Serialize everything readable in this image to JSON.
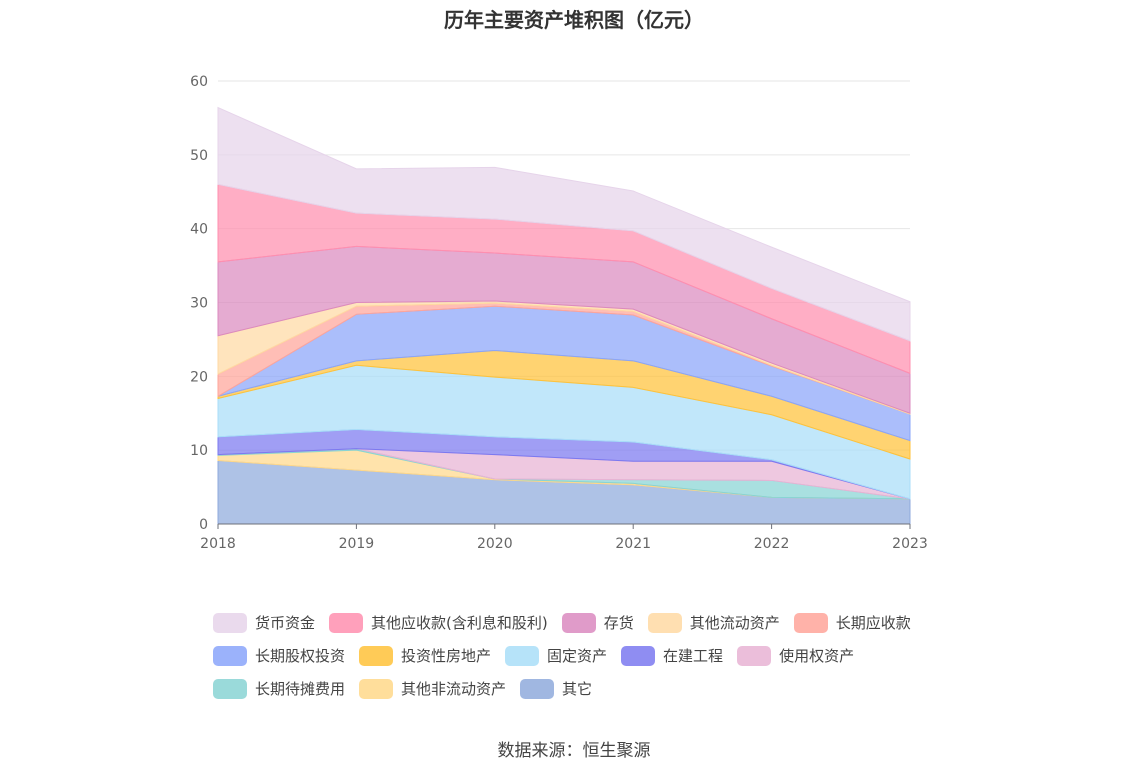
{
  "title": "历年主要资产堆积图（亿元）",
  "source": "数据来源：恒生聚源",
  "chart_data": {
    "type": "area",
    "stacked": true,
    "categories": [
      "2018",
      "2019",
      "2020",
      "2021",
      "2022",
      "2023"
    ],
    "ylim": [
      0,
      60
    ],
    "yticks": [
      0,
      10,
      20,
      30,
      40,
      50,
      60
    ],
    "grid": true,
    "legend_position": "bottom",
    "series": [
      {
        "name": "其它",
        "color": "#8FAADC",
        "values": [
          8.6,
          7.3,
          6.0,
          5.3,
          3.6,
          3.4
        ]
      },
      {
        "name": "其他非流动资产",
        "color": "#FFD88A",
        "values": [
          0.7,
          2.7,
          0.1,
          0.2,
          0.0,
          0.0
        ]
      },
      {
        "name": "长期待摊费用",
        "color": "#88D4D4",
        "values": [
          0.1,
          0.2,
          0.0,
          0.5,
          2.3,
          0.0
        ]
      },
      {
        "name": "使用权资产",
        "color": "#E8B3D4",
        "values": [
          0.0,
          0.0,
          3.3,
          2.5,
          2.6,
          0.0
        ]
      },
      {
        "name": "在建工程",
        "color": "#7B79F0",
        "values": [
          2.4,
          2.6,
          2.4,
          2.6,
          0.2,
          0.0
        ]
      },
      {
        "name": "固定资产",
        "color": "#A9DEF8",
        "values": [
          5.2,
          8.7,
          8.1,
          7.4,
          6.1,
          5.4
        ]
      },
      {
        "name": "投资性房地产",
        "color": "#FFC23A",
        "values": [
          0.3,
          0.6,
          3.6,
          3.6,
          2.5,
          2.5
        ]
      },
      {
        "name": "长期股权投资",
        "color": "#8AA5FA",
        "values": [
          0.0,
          6.3,
          6.0,
          6.2,
          4.1,
          3.6
        ]
      },
      {
        "name": "长期应收款",
        "color": "#FFA59A",
        "values": [
          3.0,
          1.1,
          0.4,
          0.5,
          0.1,
          0.0
        ]
      },
      {
        "name": "其他流动资产",
        "color": "#FFD9A3",
        "values": [
          5.2,
          0.5,
          0.3,
          0.3,
          0.3,
          0.1
        ]
      },
      {
        "name": "存货",
        "color": "#DB8ABF",
        "values": [
          10.0,
          7.6,
          6.5,
          6.4,
          6.0,
          5.4
        ]
      },
      {
        "name": "其他应收款(含利息和股利)",
        "color": "#FF8FAF",
        "values": [
          10.5,
          4.5,
          4.6,
          4.2,
          4.1,
          4.4
        ]
      },
      {
        "name": "货币资金",
        "color": "#E6D4EA",
        "values": [
          10.4,
          6.0,
          7.0,
          5.4,
          5.6,
          5.3
        ]
      }
    ]
  },
  "legend_rows": [
    [
      "货币资金",
      "其他应收款(含利息和股利)",
      "存货",
      "其他流动资产",
      "长期应收款"
    ],
    [
      "长期股权投资",
      "投资性房地产",
      "固定资产",
      "在建工程",
      "使用权资产"
    ],
    [
      "长期待摊费用",
      "其他非流动资产",
      "其它"
    ]
  ]
}
